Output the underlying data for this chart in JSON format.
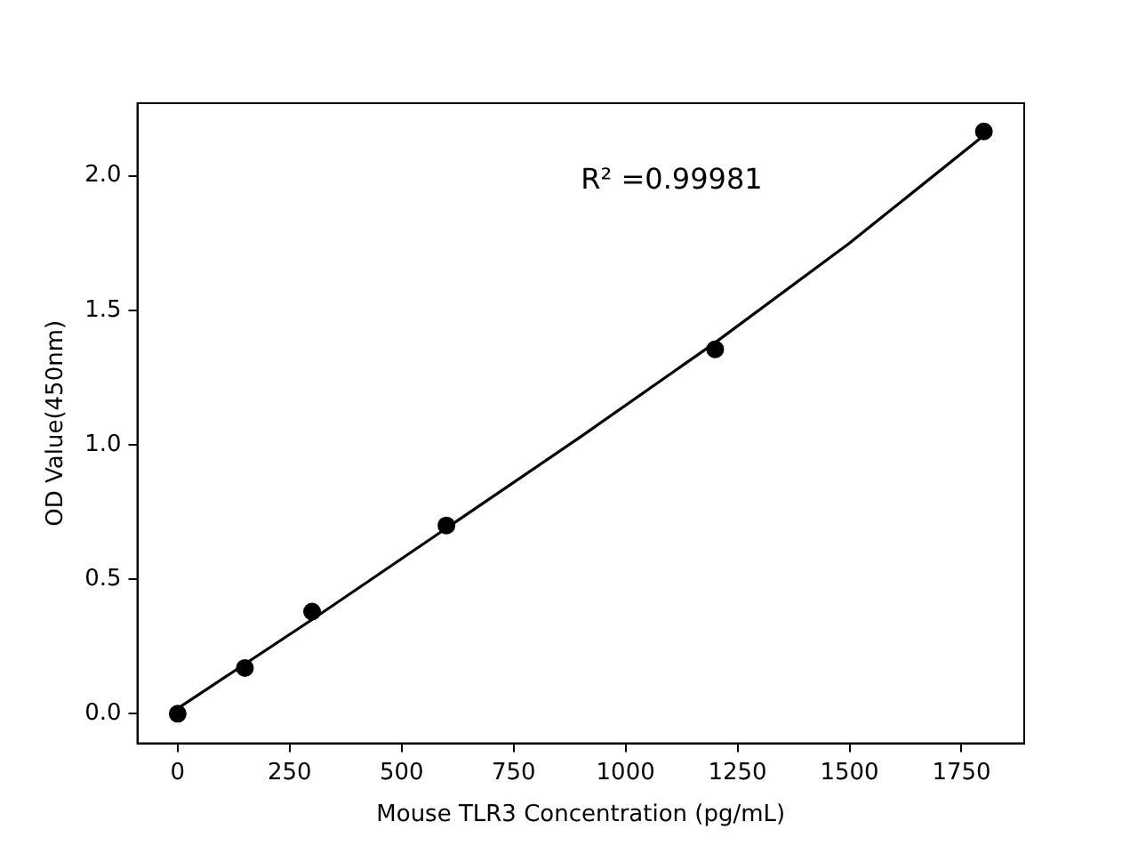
{
  "chart_data": {
    "type": "scatter",
    "xlabel": "Mouse TLR3 Concentration (pg/mL)",
    "ylabel": "OD Value(450nm)",
    "annotations": [
      "R² =0.99981"
    ],
    "series": [
      {
        "color": "#000000",
        "x": [
          0,
          150,
          300,
          600,
          1200,
          1800
        ],
        "values": [
          0.0,
          0.17,
          0.38,
          0.7,
          1.355,
          2.165
        ],
        "marker": "circle"
      },
      {
        "type": "line",
        "color": "#000000",
        "x": [
          0,
          300,
          600,
          900,
          1200,
          1500,
          1800
        ],
        "values": [
          0.02,
          0.35,
          0.69,
          1.03,
          1.38,
          1.75,
          2.15
        ],
        "marker": "none"
      }
    ],
    "xlim": [
      -90,
      1890
    ],
    "ylim": [
      -0.11,
      2.27
    ],
    "xticks": [
      0,
      250,
      500,
      750,
      1000,
      1250,
      1500,
      1750
    ],
    "yticks": [
      {
        "value": 0,
        "label": "0.0"
      },
      {
        "value": 0.5,
        "label": "0.5"
      },
      {
        "value": 1,
        "label": "1.0"
      },
      {
        "value": 1.5,
        "label": "1.5"
      },
      {
        "value": 2,
        "label": "2.0"
      }
    ],
    "grid": false,
    "legend": false
  }
}
